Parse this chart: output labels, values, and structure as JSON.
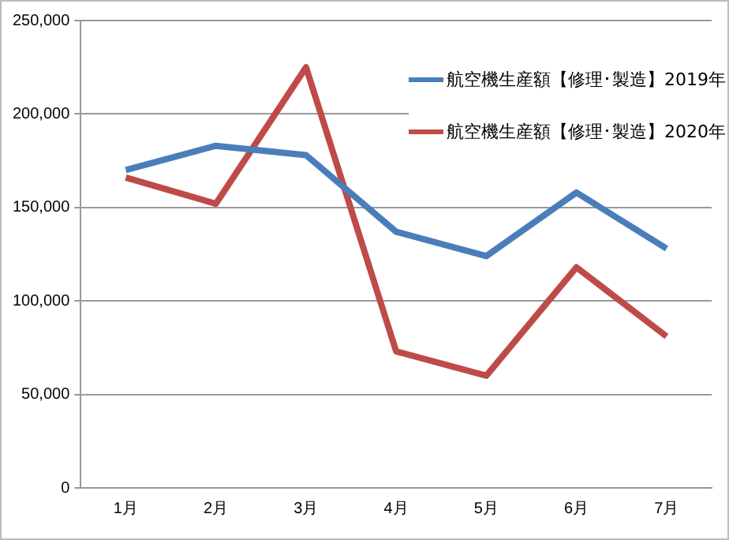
{
  "chart_data": {
    "type": "line",
    "categories": [
      "1月",
      "2月",
      "3月",
      "4月",
      "5月",
      "6月",
      "7月"
    ],
    "series": [
      {
        "name": "航空機生産額【修理･製造】2019年",
        "color": "#4a7ebb",
        "values": [
          170000,
          183000,
          178000,
          137000,
          124000,
          158000,
          128000
        ]
      },
      {
        "name": "航空機生産額【修理･製造】2020年",
        "color": "#be4b48",
        "values": [
          166000,
          152000,
          225000,
          73000,
          60000,
          118000,
          81000
        ]
      }
    ],
    "ylim": [
      0,
      250000
    ],
    "yticks": [
      0,
      {
        "value": 50000,
        "label": "50,000"
      },
      {
        "value": 100000,
        "label": "100,000"
      },
      {
        "value": 150000,
        "label": "150,000"
      },
      {
        "value": 200000,
        "label": "200,000"
      },
      {
        "value": 250000,
        "label": "250,000"
      }
    ],
    "grid": "y",
    "legend": "top right",
    "marker": "none",
    "line_style": "solid"
  }
}
